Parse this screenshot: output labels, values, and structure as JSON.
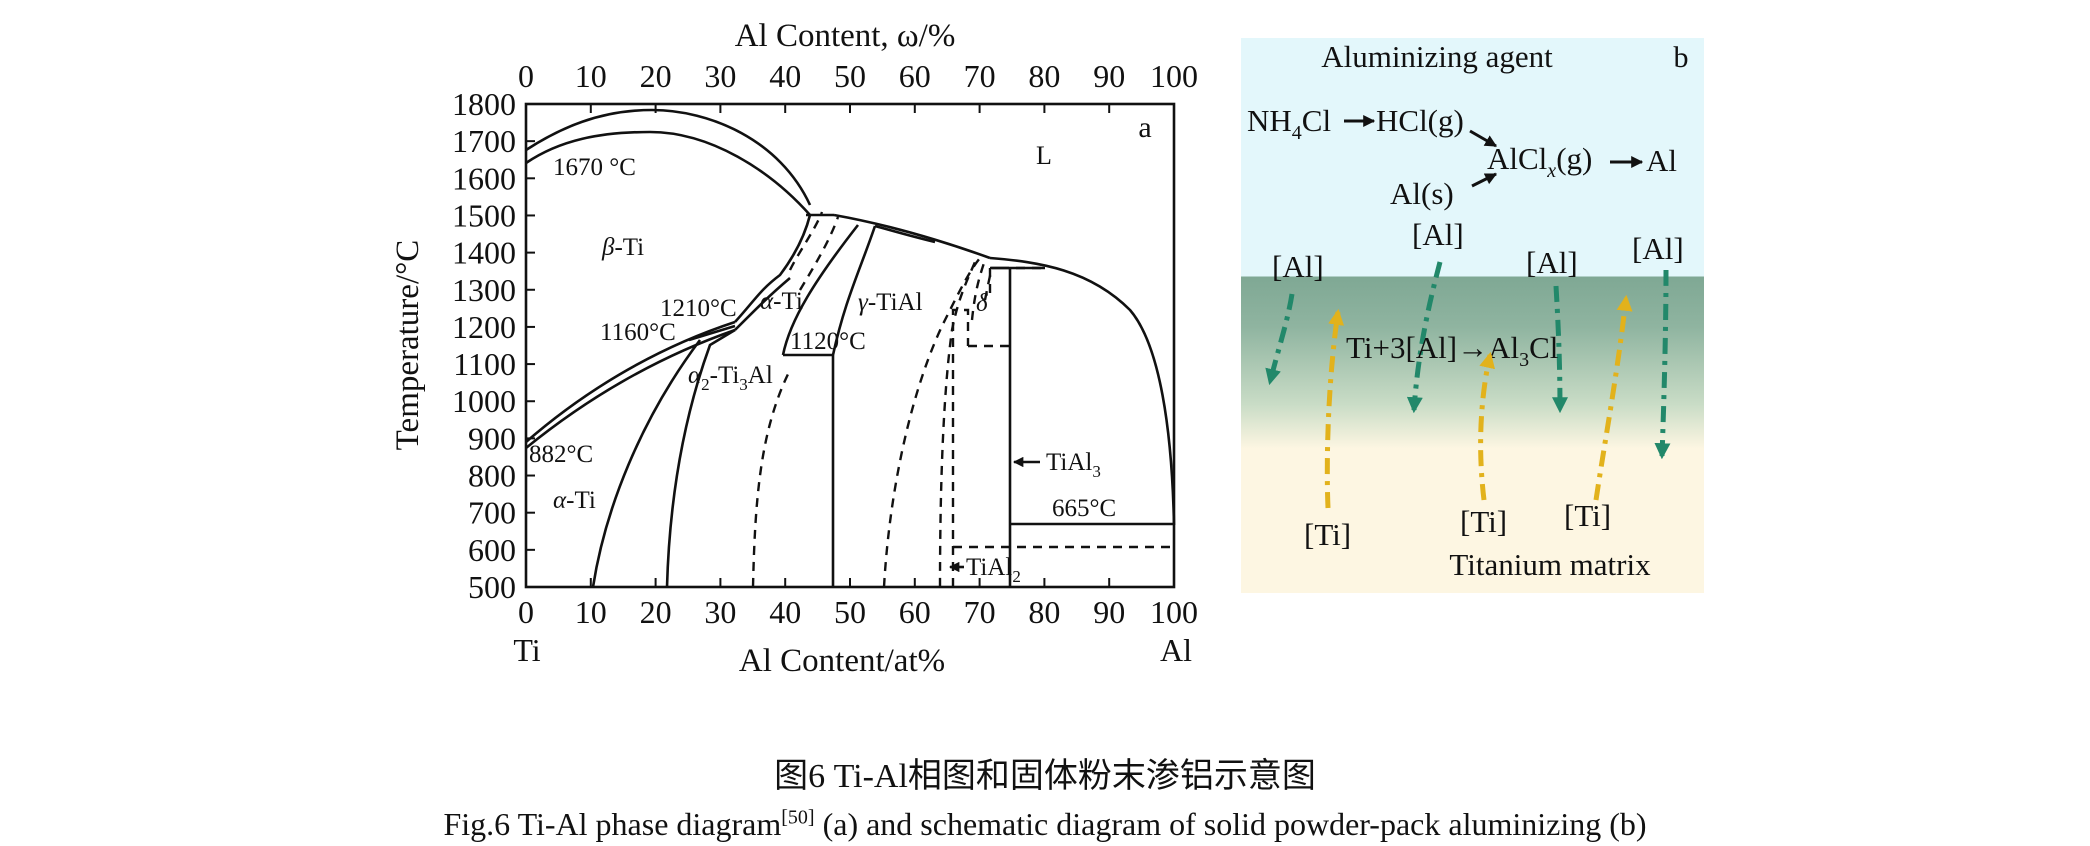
{
  "panel_a": {
    "top_axis_title": "Al Content, ω/%",
    "top_ticks": [
      "0",
      "10",
      "20",
      "30",
      "40",
      "50",
      "60",
      "70",
      "80",
      "90",
      "100"
    ],
    "bottom_ticks": [
      "0",
      "10",
      "20",
      "30",
      "40",
      "50",
      "60",
      "70",
      "80",
      "90",
      "100"
    ],
    "y_ticks": [
      "500",
      "600",
      "700",
      "800",
      "900",
      "1000",
      "1100",
      "1200",
      "1300",
      "1400",
      "1500",
      "1600",
      "1700",
      "1800"
    ],
    "y_axis_title": "Temperature/°C",
    "x_axis_title": "Al Content/at%",
    "left_end": "Ti",
    "right_end": "Al",
    "panel_letter": "a",
    "labels": {
      "liquid": "L",
      "t1670": "1670 °C",
      "beta_prefix": "β",
      "beta_suffix": "-Ti",
      "t1210": "1210°C",
      "alpha_ti_prefix": "α",
      "alpha_ti_suffix": "-Ti",
      "gamma_prefix": "γ",
      "gamma_suffix": "-TiAl",
      "delta": "δ",
      "t1160": "1160°C",
      "t1120": "1120°C",
      "alpha2_a": "α",
      "alpha2_sub": "2",
      "alpha2_b": "-Ti",
      "alpha2_sub2": "3",
      "alpha2_c": "Al",
      "t882": "882°C",
      "alpha_prefix": "α",
      "alpha_suffix": "-Ti",
      "tial3_a": "TiAl",
      "tial3_sub": "3",
      "t665": "665°C",
      "tial2_a": "TiAl",
      "tial2_sub": "2"
    }
  },
  "panel_b": {
    "title": "Aluminizing agent",
    "panel_letter": "b",
    "nh4cl_a": "NH",
    "nh4cl_sub": "4",
    "nh4cl_b": "Cl",
    "hcl": "HCl(g)",
    "alclx_a": "AlCl",
    "alclx_sub": "x",
    "alclx_b": "(g)",
    "al_out": "Al",
    "al_s": "Al(s)",
    "al_bracket": "[Al]",
    "reaction_a": "Ti+3[Al]→Al",
    "reaction_sub": "3",
    "reaction_b": "Cl",
    "ti_bracket": "[Ti]",
    "matrix": "Titanium matrix",
    "colors": {
      "gas_zone": "#e3f7fb",
      "reaction_zone": "#8fb4a0",
      "matrix_zone": "#fdf6e2",
      "al_arrow": "#22886a",
      "ti_arrow": "#e2b21c"
    }
  },
  "caption": {
    "cn": "图6  Ti-Al相图和固体粉末渗铝示意图",
    "en_a": "Fig.6  Ti-Al phase diagram",
    "en_ref": "[50]",
    "en_b": " (a) and schematic diagram of solid powder-pack aluminizing (b)"
  }
}
